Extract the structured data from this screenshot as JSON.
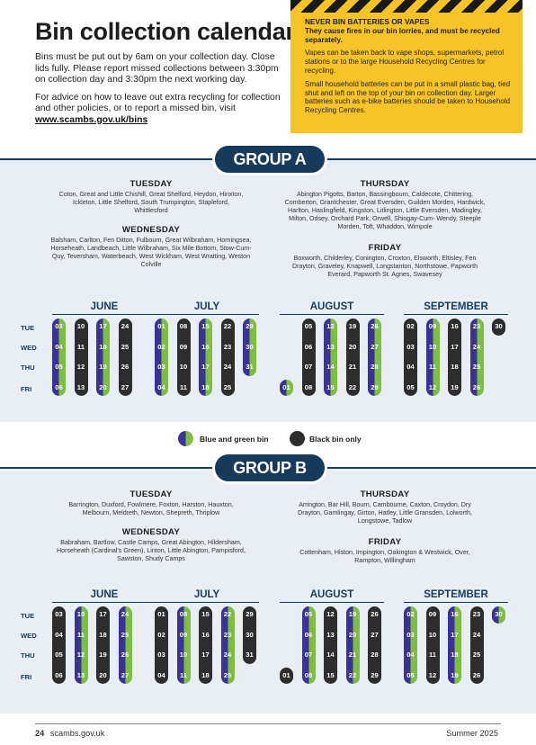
{
  "title": "Bin collection calendar",
  "intro": {
    "p1": "Bins must be put out by 6am on your collection day. Close lids fully. Please report missed collections between 3:30pm on collection day and 3:30pm the next working day.",
    "p2": "For advice on how to leave out extra recycling for collection and other policies, or to report a missed bin, visit ",
    "link": "www.scambs.gov.uk/bins"
  },
  "warning": {
    "heading": "NEVER BIN BATTERIES OR VAPES",
    "subheading": "They cause fires in our bin lorries, and must be recycled separately.",
    "p1": "Vapes can be taken back to vape shops, supermarkets, petrol stations or to the large Household Recycling Centres for recycling.",
    "p2": "Small household batteries can be put in a small plastic bag, tied shut and left on the top of your bin on collection day. Larger batteries such as e-bike batteries should be taken to Household Recycling Centres."
  },
  "colors": {
    "navy": "#163a5c",
    "blue": "#3a3296",
    "green": "#7ebd3f",
    "black_bin": "#2d2d2d",
    "warning_yellow": "#f7c427"
  },
  "weekdays": [
    "TUE",
    "WED",
    "THU",
    "FRI"
  ],
  "legend": {
    "blue_green": "Blue and green bin",
    "black": "Black bin only"
  },
  "group_a": {
    "label": "GROUP A",
    "tuesday": {
      "day": "TUESDAY",
      "places": "Coton, Great and Little Chishill, Great Shelford, Heydon, Hinxton, Ickleton, Little Shelford, South Trumpington, Stapleford, Whittlesford"
    },
    "wednesday": {
      "day": "WEDNESDAY",
      "places": "Balsham, Carlton, Fen Ditton, Fulbourn, Great Wilbraham, Horningsea, Horseheath, Landbeach, Little Wilbraham, Six Mile Bottom, Stow-Cum-Quy, Teversham, Waterbeach, West Wickham, West Wratting, Weston Colville"
    },
    "thursday": {
      "day": "THURSDAY",
      "places": "Abington Pigotts, Barton, Bassingbourn, Caldecote, Chittering, Comberton, Grantchester, Great Eversden, Guilden Morden, Hardwick, Harlton, Haslingfield, Kingston, Litlington, Little Eversden, Madingley, Milton, Odsey, Orchard Park, Orwell, Shingay-Cum- Wendy, Steeple Morden, Toft, Whaddon, Wimpole"
    },
    "friday": {
      "day": "FRIDAY",
      "places": "Boxworth, Childerley, Conington, Croxton, Elsworth, Eltisley, Fen Drayton, Graveley, Knapwell, Longstanton, Northstowe, Papworth Everard, Papworth St. Agnes, Swavesey"
    },
    "months": [
      {
        "name": "JUNE",
        "columns": [
          {
            "type": "bg",
            "start": 0,
            "days": [
              "03",
              "04",
              "05",
              "06"
            ]
          },
          {
            "type": "black",
            "start": 0,
            "days": [
              "10",
              "11",
              "12",
              "13"
            ]
          },
          {
            "type": "bg",
            "start": 0,
            "days": [
              "17",
              "18",
              "19",
              "20"
            ]
          },
          {
            "type": "black",
            "start": 0,
            "days": [
              "24",
              "25",
              "26",
              "27"
            ]
          }
        ]
      },
      {
        "name": "JULY",
        "columns": [
          {
            "type": "bg",
            "start": 0,
            "days": [
              "01",
              "02",
              "03",
              "04"
            ]
          },
          {
            "type": "black",
            "start": 0,
            "days": [
              "08",
              "09",
              "10",
              "11"
            ]
          },
          {
            "type": "bg",
            "start": 0,
            "days": [
              "15",
              "16",
              "17",
              "18"
            ]
          },
          {
            "type": "black",
            "start": 0,
            "days": [
              "22",
              "23",
              "24",
              "25"
            ]
          },
          {
            "type": "bg",
            "start": 0,
            "days": [
              "29",
              "30",
              "31"
            ]
          }
        ]
      },
      {
        "name": "AUGUST",
        "columns": [
          {
            "type": "bg",
            "start": 3,
            "days": [
              "01"
            ]
          },
          {
            "type": "black",
            "start": 0,
            "days": [
              "05",
              "06",
              "07",
              "08"
            ]
          },
          {
            "type": "bg",
            "start": 0,
            "days": [
              "12",
              "13",
              "14",
              "15"
            ]
          },
          {
            "type": "black",
            "start": 0,
            "days": [
              "19",
              "20",
              "21",
              "22"
            ]
          },
          {
            "type": "bg",
            "start": 0,
            "days": [
              "26",
              "27",
              "28",
              "29"
            ]
          }
        ]
      },
      {
        "name": "SEPTEMBER",
        "columns": [
          {
            "type": "black",
            "start": 0,
            "days": [
              "02",
              "03",
              "04",
              "05"
            ]
          },
          {
            "type": "bg",
            "start": 0,
            "days": [
              "09",
              "10",
              "11",
              "12"
            ]
          },
          {
            "type": "black",
            "start": 0,
            "days": [
              "16",
              "17",
              "18",
              "19"
            ]
          },
          {
            "type": "bg",
            "start": 0,
            "days": [
              "23",
              "24",
              "25",
              "26"
            ]
          },
          {
            "type": "black",
            "start": 0,
            "days": [
              "30"
            ]
          }
        ]
      }
    ]
  },
  "group_b": {
    "label": "GROUP B",
    "tuesday": {
      "day": "TUESDAY",
      "places": "Barrington, Duxford, Fowlmere, Foxton, Harston, Hauxton, Melbourn, Meldreth, Newton, Shepreth, Thriplow"
    },
    "wednesday": {
      "day": "WEDNESDAY",
      "places": "Babraham, Bartlow, Castle Camps, Great Abington, Hildersham, Horseheath (Cardinal's Green), Linton, Little Abington, Pampisford, Sawston, Shudy Camps"
    },
    "thursday": {
      "day": "THURSDAY",
      "places": "Arrington, Bar Hill, Bourn, Cambourne, Caxton, Croydon, Dry Drayton, Gamlingay, Girton, Hatley, Little Gransden, Lolworth, Longstowe, Tadlow"
    },
    "friday": {
      "day": "FRIDAY",
      "places": "Cottenham, Histon, Impington, Oakington & Westwick, Over, Rampton, Willingham"
    },
    "months": [
      {
        "name": "JUNE",
        "columns": [
          {
            "type": "black",
            "start": 0,
            "days": [
              "03",
              "04",
              "05",
              "06"
            ]
          },
          {
            "type": "bg",
            "start": 0,
            "days": [
              "10",
              "11",
              "12",
              "13"
            ]
          },
          {
            "type": "black",
            "start": 0,
            "days": [
              "17",
              "18",
              "19",
              "20"
            ]
          },
          {
            "type": "bg",
            "start": 0,
            "days": [
              "24",
              "25",
              "26",
              "27"
            ]
          }
        ]
      },
      {
        "name": "JULY",
        "columns": [
          {
            "type": "black",
            "start": 0,
            "days": [
              "01",
              "02",
              "03",
              "04"
            ]
          },
          {
            "type": "bg",
            "start": 0,
            "days": [
              "08",
              "09",
              "10",
              "11"
            ]
          },
          {
            "type": "black",
            "start": 0,
            "days": [
              "15",
              "16",
              "17",
              "18"
            ]
          },
          {
            "type": "bg",
            "start": 0,
            "days": [
              "22",
              "23",
              "24",
              "25"
            ]
          },
          {
            "type": "black",
            "start": 0,
            "days": [
              "29",
              "30",
              "31"
            ]
          }
        ]
      },
      {
        "name": "AUGUST",
        "columns": [
          {
            "type": "black",
            "start": 3,
            "days": [
              "01"
            ]
          },
          {
            "type": "bg",
            "start": 0,
            "days": [
              "05",
              "06",
              "07",
              "08"
            ]
          },
          {
            "type": "black",
            "start": 0,
            "days": [
              "12",
              "13",
              "14",
              "15"
            ]
          },
          {
            "type": "bg",
            "start": 0,
            "days": [
              "19",
              "20",
              "21",
              "22"
            ]
          },
          {
            "type": "black",
            "start": 0,
            "days": [
              "26",
              "27",
              "28",
              "29"
            ]
          }
        ]
      },
      {
        "name": "SEPTEMBER",
        "columns": [
          {
            "type": "bg",
            "start": 0,
            "days": [
              "02",
              "03",
              "04",
              "05"
            ]
          },
          {
            "type": "black",
            "start": 0,
            "days": [
              "09",
              "10",
              "11",
              "12"
            ]
          },
          {
            "type": "bg",
            "start": 0,
            "days": [
              "16",
              "17",
              "18",
              "19"
            ]
          },
          {
            "type": "black",
            "start": 0,
            "days": [
              "23",
              "24",
              "25",
              "26"
            ]
          },
          {
            "type": "bg",
            "start": 0,
            "days": [
              "30"
            ]
          }
        ]
      }
    ]
  },
  "footer": {
    "page": "24",
    "site": "scambs.gov.uk",
    "edition": "Summer 2025"
  }
}
